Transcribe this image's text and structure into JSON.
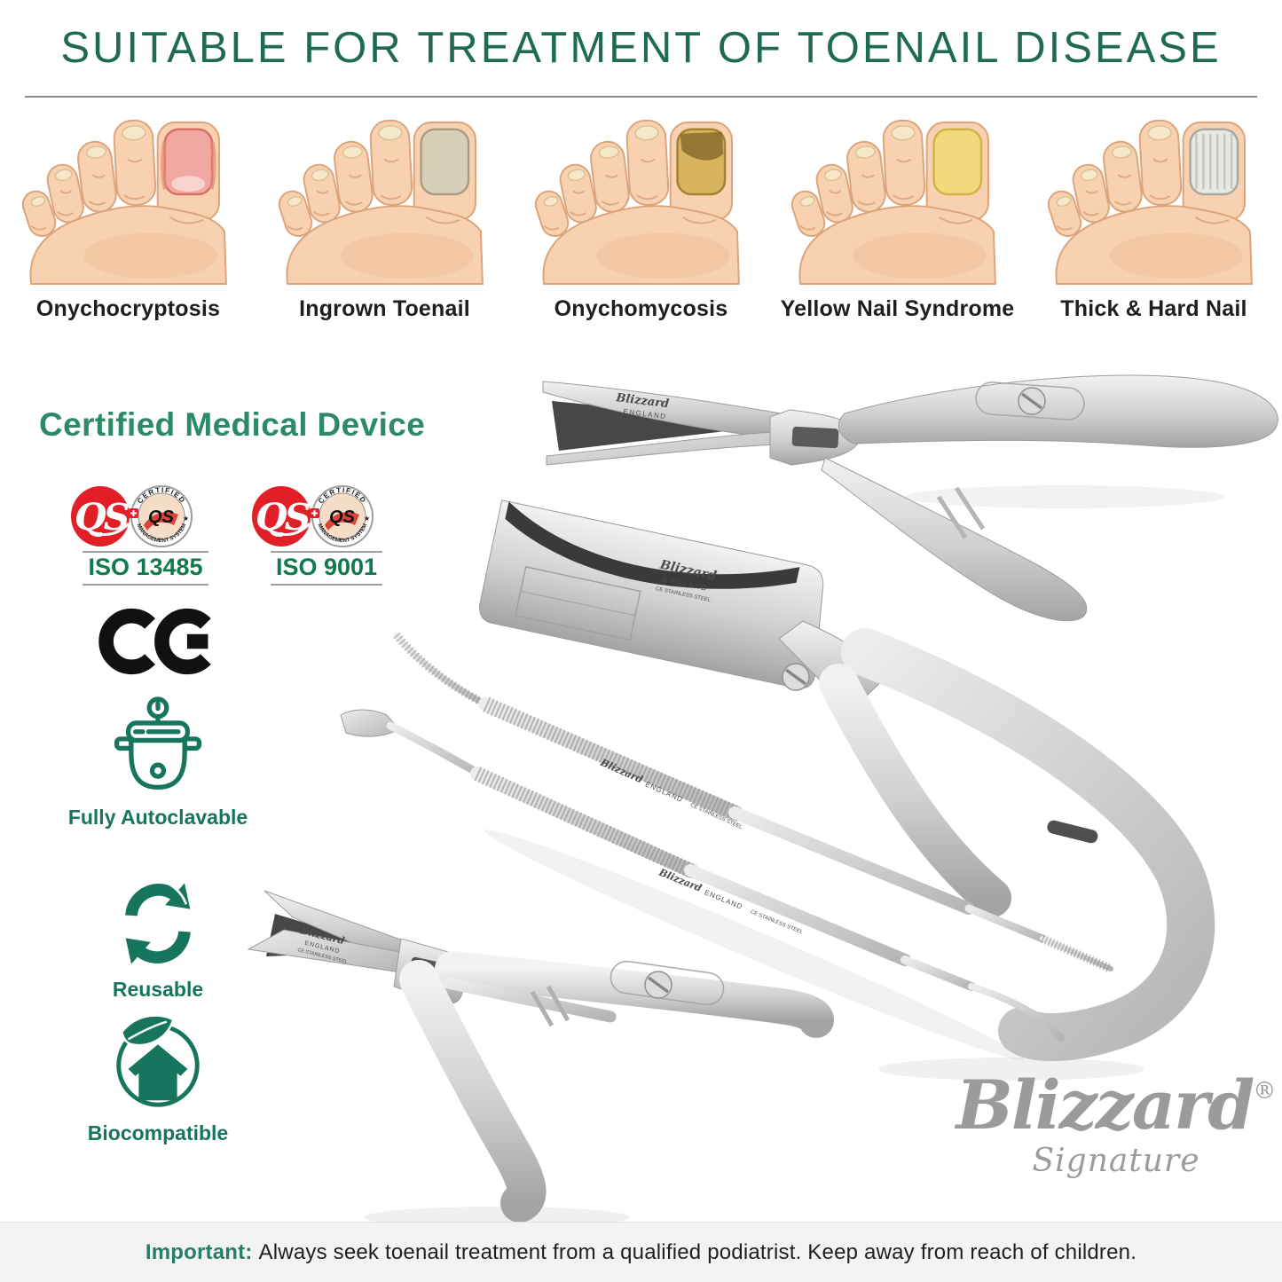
{
  "header": {
    "title": "SUITABLE FOR TREATMENT OF TOENAIL DISEASE"
  },
  "colors": {
    "title_green": "#1e6a55",
    "heading_green": "#2c8a67",
    "icon_green": "#17755e",
    "iso_green": "#10794f",
    "badge_red": "#e21f26",
    "footer_green": "#267d68",
    "logo_gray": "#9b9b9b",
    "footer_bg": "#f3f3f3",
    "steel_gray": "#c8c8c8"
  },
  "skin": {
    "base": "#f8d2b0",
    "outline": "#dba47b",
    "shade": "#efb78e",
    "small_nail": "#f5e8c9",
    "small_nail_edge": "#dcc094"
  },
  "conditions": [
    {
      "label": "Onychocryptosis",
      "nail": "#f2a8a2",
      "nail_edge": "#d96e62",
      "variant": "inflamed"
    },
    {
      "label": "Ingrown Toenail",
      "nail": "#d8cfb9",
      "nail_edge": "#aa9c80",
      "variant": "plain"
    },
    {
      "label": "Onychomycosis",
      "nail": "#d9b45f",
      "nail_edge": "#a3812f",
      "variant": "fungal",
      "patch": "#8a6c2c"
    },
    {
      "label": "Yellow Nail Syndrome",
      "nail": "#f1d97c",
      "nail_edge": "#d4b24a",
      "variant": "plain"
    },
    {
      "label": "Thick & Hard Nail",
      "nail": "#e9e9e4",
      "nail_edge": "#a8a89e",
      "variant": "streaked",
      "streak": "#b9b9b0"
    }
  ],
  "certification": {
    "heading": "Certified Medical Device",
    "badges": [
      {
        "logo": "QS",
        "ring_top": "CERTIFIED",
        "ring_center": "QS",
        "ring_bottom": "MANAGEMENT SYSTEM",
        "iso": "ISO 13485"
      },
      {
        "logo": "QS",
        "ring_top": "CERTIFIED",
        "ring_center": "QS",
        "ring_bottom": "MANAGEMENT SYSTEM",
        "iso": "ISO 9001"
      }
    ],
    "ce": "CE",
    "features": [
      {
        "icon": "autoclave-icon",
        "label": "Fully Autoclavable"
      },
      {
        "icon": "recycle-icon",
        "label": "Reusable"
      },
      {
        "icon": "biocompatible-icon",
        "label": "Biocompatible"
      }
    ]
  },
  "instruments": {
    "engraving_brand": "Blizzard",
    "engraving_origin": "ENGLAND",
    "engraving_detail": "CE STAINLESS STEEL"
  },
  "brand": {
    "name": "Blizzard",
    "registered": "®",
    "tagline": "Signature"
  },
  "footer": {
    "highlight": "Important:",
    "text": "Always seek toenail treatment from a qualified podiatrist. Keep away from reach of children."
  }
}
